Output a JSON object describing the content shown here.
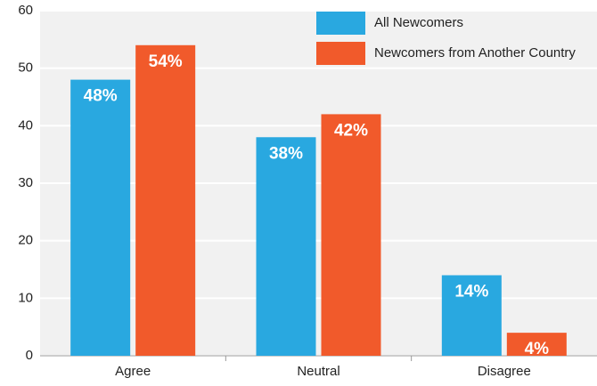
{
  "chart_data": {
    "type": "bar",
    "categories": [
      "Agree",
      "Neutral",
      "Disagree"
    ],
    "series": [
      {
        "name": "All Newcomers",
        "color": "#29a8e0",
        "values": [
          48,
          38,
          14
        ],
        "value_labels": [
          "48%",
          "38%",
          "14%"
        ]
      },
      {
        "name": "Newcomers from Another Country",
        "color": "#f15a2b",
        "values": [
          54,
          42,
          4
        ],
        "value_labels": [
          "54%",
          "42%",
          "4%"
        ]
      }
    ],
    "ylim": [
      0,
      60
    ],
    "yticks": [
      0,
      10,
      20,
      30,
      40,
      50,
      60
    ],
    "grid": true,
    "legend": "top-right"
  }
}
